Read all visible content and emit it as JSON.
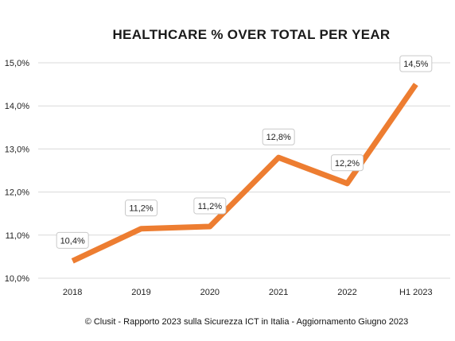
{
  "chart_data": {
    "type": "line",
    "title": "HEALTHCARE % OVER TOTAL PER YEAR",
    "categories": [
      "2018",
      "2019",
      "2020",
      "2021",
      "2022",
      "H1 2023"
    ],
    "series": [
      {
        "values": [
          10.4,
          11.15,
          11.2,
          12.8,
          12.2,
          14.5
        ],
        "data_labels": [
          "10,4%",
          "11,2%",
          "11,2%",
          "12,8%",
          "12,2%",
          "14,5%"
        ],
        "color": "#ED7D31"
      }
    ],
    "yticks": [
      {
        "value": 10,
        "label": "10,0%"
      },
      {
        "value": 11,
        "label": "11,0%"
      },
      {
        "value": 12,
        "label": "12,0%"
      },
      {
        "value": 13,
        "label": "13,0%"
      },
      {
        "value": 14,
        "label": "14,0%"
      },
      {
        "value": 15,
        "label": "15,0%"
      }
    ],
    "ylim": [
      10,
      15
    ],
    "grid": "horizontal",
    "legend": "none"
  },
  "footer": "© Clusit - Rapporto 2023 sulla Sicurezza ICT in Italia - Aggiornamento Giugno 2023"
}
